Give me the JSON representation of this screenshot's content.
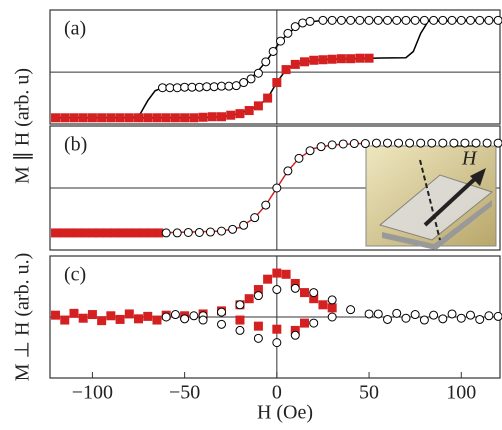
{
  "chart_data": [
    {
      "type": "line",
      "label": "(a)",
      "ylabel": "M ∥ H (arb. u)",
      "xlim": [
        -123,
        121
      ],
      "ylim": [
        -1,
        1.2
      ],
      "series": [
        {
          "style": "line",
          "color": "#000000",
          "x": [
            -122,
            -78,
            -74,
            -70,
            -66,
            -62,
            -40,
            -25,
            -18,
            -12,
            -6,
            0,
            6,
            12,
            18,
            25,
            121
          ],
          "values": [
            -0.88,
            -0.88,
            -0.8,
            -0.55,
            -0.36,
            -0.3,
            -0.29,
            -0.26,
            -0.2,
            -0.05,
            0.2,
            0.5,
            0.75,
            0.9,
            0.97,
            1.0,
            1.0
          ]
        },
        {
          "style": "line",
          "color": "#000000",
          "x": [
            -122,
            -45,
            -30,
            -20,
            -10,
            -5,
            0,
            5,
            10,
            20,
            30,
            50,
            70,
            74,
            78,
            82,
            121
          ],
          "values": [
            -0.88,
            -0.88,
            -0.86,
            -0.8,
            -0.65,
            -0.5,
            -0.2,
            0.05,
            0.15,
            0.23,
            0.25,
            0.27,
            0.28,
            0.4,
            0.75,
            0.98,
            1.0
          ]
        },
        {
          "style": "square",
          "color": "#d42020",
          "x": [
            -120,
            -115,
            -110,
            -105,
            -100,
            -95,
            -90,
            -85,
            -80,
            -75,
            -70,
            -65,
            -60,
            -55,
            -50,
            -45,
            -40,
            -35,
            -30,
            -25,
            -20,
            -15,
            -10,
            -5,
            0,
            5,
            10,
            15,
            20,
            25,
            30,
            35,
            40,
            45,
            50
          ],
          "values": [
            -0.88,
            -0.88,
            -0.88,
            -0.88,
            -0.88,
            -0.88,
            -0.88,
            -0.88,
            -0.88,
            -0.88,
            -0.88,
            -0.88,
            -0.88,
            -0.88,
            -0.88,
            -0.88,
            -0.87,
            -0.86,
            -0.86,
            -0.83,
            -0.8,
            -0.74,
            -0.65,
            -0.5,
            -0.2,
            0.05,
            0.15,
            0.2,
            0.23,
            0.24,
            0.25,
            0.26,
            0.26,
            0.27,
            0.27
          ]
        },
        {
          "style": "circle",
          "color": "#000000",
          "x": [
            -62,
            -58,
            -54,
            -50,
            -46,
            -42,
            -38,
            -34,
            -30,
            -26,
            -22,
            -18,
            -14,
            -10,
            -6,
            -2,
            2,
            6,
            10,
            14,
            18,
            25,
            30,
            35,
            40,
            45,
            50,
            55,
            60,
            65,
            70,
            75,
            80,
            85,
            90,
            95,
            100,
            105,
            110,
            115,
            120
          ],
          "values": [
            -0.3,
            -0.3,
            -0.3,
            -0.29,
            -0.29,
            -0.29,
            -0.28,
            -0.28,
            -0.27,
            -0.27,
            -0.26,
            -0.2,
            -0.13,
            -0.02,
            0.2,
            0.4,
            0.6,
            0.75,
            0.88,
            0.95,
            0.98,
            1.0,
            1.0,
            1.0,
            1.0,
            1.0,
            1.0,
            1.0,
            1.0,
            1.0,
            1.0,
            1.0,
            1.0,
            1.0,
            1.0,
            1.0,
            1.0,
            1.0,
            1.0,
            1.0,
            1.0
          ]
        }
      ]
    },
    {
      "type": "line",
      "label": "(b)",
      "annotation": "H",
      "xlim": [
        -123,
        121
      ],
      "ylim": [
        -1.38,
        1.38
      ],
      "series": [
        {
          "style": "square",
          "color": "#d42020",
          "x": [
            -120,
            -116,
            -112,
            -108,
            -104,
            -100,
            -96,
            -92,
            -88,
            -84,
            -80,
            -76,
            -72,
            -68,
            -64
          ],
          "values": [
            -1,
            -1,
            -1,
            -1,
            -1,
            -1,
            -1,
            -1,
            -1,
            -1,
            -1,
            -1,
            -1,
            -1,
            -1
          ]
        },
        {
          "style": "line",
          "color": "#d42020",
          "x": [
            -64,
            -30,
            -20,
            -12,
            -6,
            0,
            6,
            12,
            20,
            30,
            50
          ],
          "values": [
            -1,
            -0.96,
            -0.88,
            -0.66,
            -0.38,
            0,
            0.38,
            0.66,
            0.88,
            0.96,
            1.0
          ]
        },
        {
          "style": "circle",
          "color": "#000000",
          "x": [
            -60,
            -54,
            -48,
            -42,
            -36,
            -30,
            -24,
            -18,
            -12,
            -6,
            0,
            6,
            12,
            18,
            24,
            30,
            36,
            42,
            48,
            54,
            60,
            66,
            72,
            78,
            84,
            90,
            96,
            102,
            108,
            114,
            120
          ],
          "values": [
            -1.0,
            -1.0,
            -0.99,
            -0.99,
            -0.98,
            -0.96,
            -0.92,
            -0.83,
            -0.66,
            -0.38,
            0,
            0.38,
            0.66,
            0.83,
            0.92,
            0.96,
            0.98,
            0.99,
            0.99,
            1.0,
            1.0,
            1.0,
            1.0,
            1.0,
            1.0,
            1.0,
            1.0,
            1.0,
            1.0,
            1.0,
            1.0
          ]
        }
      ]
    },
    {
      "type": "scatter",
      "label": "(c)",
      "ylabel": "M ⊥ H (arb. u.)",
      "xlabel": "H (Oe)",
      "xlim": [
        -123,
        121
      ],
      "ylim": [
        -1,
        1
      ],
      "xticks": [
        {
          "value": -100,
          "label": "−100"
        },
        {
          "value": -50,
          "label": "−50"
        },
        0,
        50,
        100
      ],
      "series": [
        {
          "style": "square",
          "color": "#d42020",
          "x": [
            -120,
            -115,
            -110,
            -105,
            -100,
            -95,
            -90,
            -85,
            -80,
            -75,
            -70,
            -65,
            -60,
            -50,
            -40,
            -30,
            -20,
            -15,
            -10,
            -5,
            0,
            5,
            10,
            15,
            20,
            25,
            30,
            -20,
            -10,
            0,
            10,
            15
          ],
          "values": [
            0.03,
            -0.05,
            0.06,
            -0.02,
            0.04,
            -0.06,
            0.02,
            -0.04,
            0.05,
            -0.03,
            0.01,
            -0.05,
            0.03,
            0.02,
            0.05,
            0.1,
            0.2,
            0.3,
            0.45,
            0.62,
            0.72,
            0.7,
            0.55,
            0.4,
            0.3,
            0.2,
            0.15,
            -0.05,
            -0.15,
            -0.2,
            -0.22,
            -0.1
          ]
        },
        {
          "style": "circle",
          "color": "#000000",
          "x": [
            -60,
            -55,
            -50,
            -45,
            -40,
            -30,
            -20,
            -10,
            0,
            10,
            20,
            30,
            40,
            50,
            -40,
            -30,
            -20,
            -10,
            0,
            10,
            20,
            30,
            55,
            60,
            65,
            70,
            75,
            80,
            85,
            90,
            95,
            100,
            105,
            110,
            115,
            120
          ],
          "values": [
            0.0,
            0.04,
            -0.03,
            0.02,
            0.02,
            0.08,
            0.2,
            0.35,
            0.45,
            0.47,
            0.4,
            0.28,
            0.12,
            0.05,
            -0.05,
            -0.12,
            -0.22,
            -0.35,
            -0.42,
            -0.3,
            -0.1,
            0.0,
            0.05,
            -0.04,
            0.06,
            -0.02,
            0.04,
            -0.05,
            0.03,
            -0.03,
            0.05,
            -0.02,
            0.03,
            -0.04,
            0.02,
            0.01
          ]
        }
      ]
    }
  ]
}
